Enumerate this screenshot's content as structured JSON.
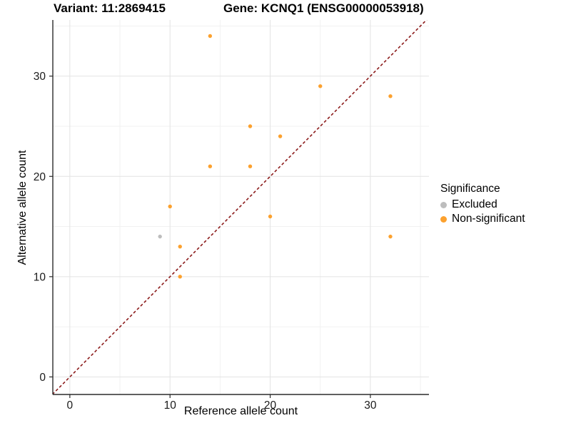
{
  "titles": {
    "left": "Variant: 11:2869415",
    "right": "Gene: KCNQ1 (ENSG00000053918)"
  },
  "colors": {
    "background": "#FFFFFF",
    "grid_major": "#E3E3E3",
    "grid_minor": "#F1F1F1",
    "axis_line": "#2B2B2B",
    "tick_label": "#1A1A1A",
    "excluded_gray": "#BDBDBD",
    "non_significant_orange": "#FCA12E",
    "identity_line_darkred": "#8B1A1A"
  },
  "chart_data": {
    "type": "scatter",
    "xlabel": "Reference allele count",
    "ylabel": "Alternative allele count",
    "xlim": [
      -1.7,
      35.85
    ],
    "ylim": [
      -1.75,
      35.6
    ],
    "xticks": [
      0,
      10,
      20,
      30
    ],
    "yticks": [
      0,
      10,
      20,
      30
    ],
    "xticks_minor": [
      5,
      15,
      25,
      35
    ],
    "yticks_minor": [
      5,
      15,
      25,
      35
    ],
    "grid": "major and minor, light gray on white panel",
    "legend": {
      "title": "Significance",
      "position": "right"
    },
    "identity_line": {
      "style": "dashed",
      "color": "#8B1A1A",
      "from": -1.75,
      "to": 35.85,
      "meaning": "y = x reference line"
    },
    "series": [
      {
        "name": "Excluded",
        "color": "#BDBDBD",
        "points": [
          {
            "x": 9,
            "y": 14
          }
        ]
      },
      {
        "name": "Non-significant",
        "color": "#FCA12E",
        "points": [
          {
            "x": 10,
            "y": 17
          },
          {
            "x": 11,
            "y": 10
          },
          {
            "x": 11,
            "y": 13
          },
          {
            "x": 14,
            "y": 21
          },
          {
            "x": 14,
            "y": 34
          },
          {
            "x": 18,
            "y": 21
          },
          {
            "x": 18,
            "y": 25
          },
          {
            "x": 20,
            "y": 16
          },
          {
            "x": 21,
            "y": 24
          },
          {
            "x": 25,
            "y": 29
          },
          {
            "x": 32,
            "y": 14
          },
          {
            "x": 32,
            "y": 28
          }
        ]
      }
    ]
  }
}
